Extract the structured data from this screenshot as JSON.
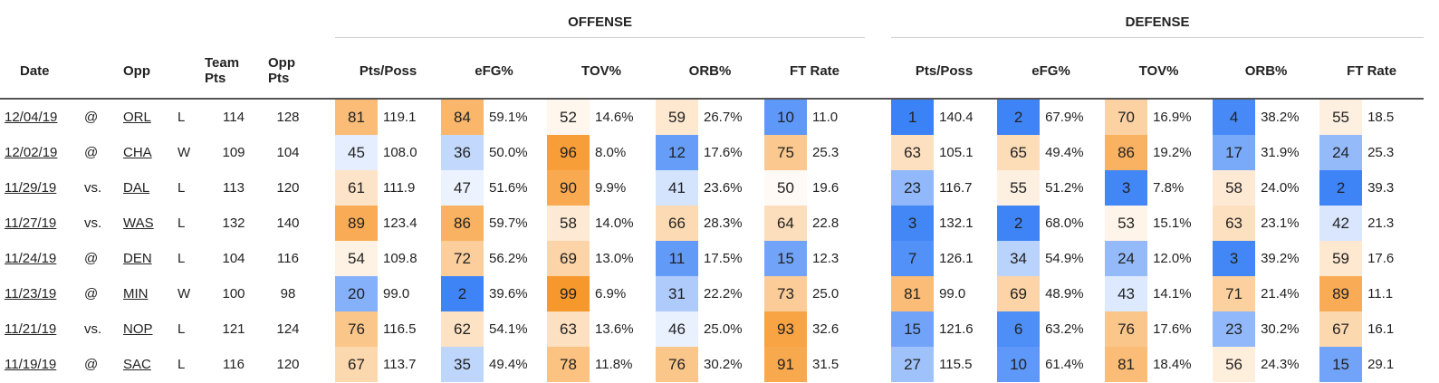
{
  "groups": {
    "offense": "OFFENSE",
    "defense": "DEFENSE"
  },
  "headers": {
    "date": "Date",
    "opp": "Opp",
    "team_pts": "Team Pts",
    "opp_pts": "Opp Pts",
    "metrics": [
      "Pts/Poss",
      "eFG%",
      "TOV%",
      "ORB%",
      "FT Rate"
    ]
  },
  "colors": {
    "orange_dark": "#f7a030",
    "orange_light": "#fdebd5",
    "blue_dark": "#3b82f6",
    "blue_light": "#dde9fb"
  },
  "rows": [
    {
      "date": "12/04/19",
      "loc": "@",
      "opp": "ORL",
      "res": "L",
      "tp": "114",
      "op": "128",
      "off": [
        [
          "81",
          "119.1"
        ],
        [
          "84",
          "59.1%"
        ],
        [
          "52",
          "14.6%"
        ],
        [
          "59",
          "26.7%"
        ],
        [
          "10",
          "11.0"
        ]
      ],
      "def": [
        [
          "1",
          "140.4"
        ],
        [
          "2",
          "67.9%"
        ],
        [
          "70",
          "16.9%"
        ],
        [
          "4",
          "38.2%"
        ],
        [
          "55",
          "18.5"
        ]
      ]
    },
    {
      "date": "12/02/19",
      "loc": "@",
      "opp": "CHA",
      "res": "W",
      "tp": "109",
      "op": "104",
      "off": [
        [
          "45",
          "108.0"
        ],
        [
          "36",
          "50.0%"
        ],
        [
          "96",
          "8.0%"
        ],
        [
          "12",
          "17.6%"
        ],
        [
          "75",
          "25.3"
        ]
      ],
      "def": [
        [
          "63",
          "105.1"
        ],
        [
          "65",
          "49.4%"
        ],
        [
          "86",
          "19.2%"
        ],
        [
          "17",
          "31.9%"
        ],
        [
          "24",
          "25.3"
        ]
      ]
    },
    {
      "date": "11/29/19",
      "loc": "vs.",
      "opp": "DAL",
      "res": "L",
      "tp": "113",
      "op": "120",
      "off": [
        [
          "61",
          "111.9"
        ],
        [
          "47",
          "51.6%"
        ],
        [
          "90",
          "9.9%"
        ],
        [
          "41",
          "23.6%"
        ],
        [
          "50",
          "19.6"
        ]
      ],
      "def": [
        [
          "23",
          "116.7"
        ],
        [
          "55",
          "51.2%"
        ],
        [
          "3",
          "7.8%"
        ],
        [
          "58",
          "24.0%"
        ],
        [
          "2",
          "39.3"
        ]
      ]
    },
    {
      "date": "11/27/19",
      "loc": "vs.",
      "opp": "WAS",
      "res": "L",
      "tp": "132",
      "op": "140",
      "off": [
        [
          "89",
          "123.4"
        ],
        [
          "86",
          "59.7%"
        ],
        [
          "58",
          "14.0%"
        ],
        [
          "66",
          "28.3%"
        ],
        [
          "64",
          "22.8"
        ]
      ],
      "def": [
        [
          "3",
          "132.1"
        ],
        [
          "2",
          "68.0%"
        ],
        [
          "53",
          "15.1%"
        ],
        [
          "63",
          "23.1%"
        ],
        [
          "42",
          "21.3"
        ]
      ]
    },
    {
      "date": "11/24/19",
      "loc": "@",
      "opp": "DEN",
      "res": "L",
      "tp": "104",
      "op": "116",
      "off": [
        [
          "54",
          "109.8"
        ],
        [
          "72",
          "56.2%"
        ],
        [
          "69",
          "13.0%"
        ],
        [
          "11",
          "17.5%"
        ],
        [
          "15",
          "12.3"
        ]
      ],
      "def": [
        [
          "7",
          "126.1"
        ],
        [
          "34",
          "54.9%"
        ],
        [
          "24",
          "12.0%"
        ],
        [
          "3",
          "39.2%"
        ],
        [
          "59",
          "17.6"
        ]
      ]
    },
    {
      "date": "11/23/19",
      "loc": "@",
      "opp": "MIN",
      "res": "W",
      "tp": "100",
      "op": "98",
      "off": [
        [
          "20",
          "99.0"
        ],
        [
          "2",
          "39.6%"
        ],
        [
          "99",
          "6.9%"
        ],
        [
          "31",
          "22.2%"
        ],
        [
          "73",
          "25.0"
        ]
      ],
      "def": [
        [
          "81",
          "99.0"
        ],
        [
          "69",
          "48.9%"
        ],
        [
          "43",
          "14.1%"
        ],
        [
          "71",
          "21.4%"
        ],
        [
          "89",
          "11.1"
        ]
      ]
    },
    {
      "date": "11/21/19",
      "loc": "vs.",
      "opp": "NOP",
      "res": "L",
      "tp": "121",
      "op": "124",
      "off": [
        [
          "76",
          "116.5"
        ],
        [
          "62",
          "54.1%"
        ],
        [
          "63",
          "13.6%"
        ],
        [
          "46",
          "25.0%"
        ],
        [
          "93",
          "32.6"
        ]
      ],
      "def": [
        [
          "15",
          "121.6"
        ],
        [
          "6",
          "63.2%"
        ],
        [
          "76",
          "17.6%"
        ],
        [
          "23",
          "30.2%"
        ],
        [
          "67",
          "16.1"
        ]
      ]
    },
    {
      "date": "11/19/19",
      "loc": "@",
      "opp": "SAC",
      "res": "L",
      "tp": "116",
      "op": "120",
      "off": [
        [
          "67",
          "113.7"
        ],
        [
          "35",
          "49.4%"
        ],
        [
          "78",
          "11.8%"
        ],
        [
          "76",
          "30.2%"
        ],
        [
          "91",
          "31.5"
        ]
      ],
      "def": [
        [
          "27",
          "115.5"
        ],
        [
          "10",
          "61.4%"
        ],
        [
          "81",
          "18.4%"
        ],
        [
          "56",
          "24.3%"
        ],
        [
          "15",
          "29.1"
        ]
      ]
    }
  ]
}
